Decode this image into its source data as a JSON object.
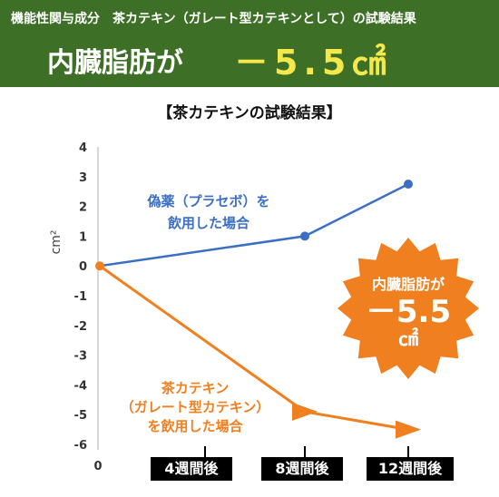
{
  "header": {
    "subtitle": "機能性関与成分　茶カテキン（ガレート型カテキンとして）の試験結果",
    "headline": "内臓脂肪が",
    "headline_value": "－5.5㎠"
  },
  "callout": {
    "line1": "内臓脂肪が",
    "line2": "－5.5",
    "line3": "㎠"
  },
  "annotations": {
    "placebo": [
      "偽薬（プラセボ）を",
      "飲用した場合"
    ],
    "tea_catechin": [
      "茶カテキン",
      "（ガレート型カテキン）",
      "を飲用した場合"
    ]
  },
  "colors": {
    "header_bg": "#3e6f27",
    "headline_value": "#f5e84a",
    "placebo": "#3b6fc4",
    "tea_catechin": "#f07f1f",
    "callout_bg": "#f07f1f"
  },
  "chart_data": {
    "type": "line",
    "title": "【茶カテキンの試験結果】",
    "ylabel": "cm²",
    "xlabel": "",
    "ylim": [
      -6,
      4
    ],
    "yticks": [
      4,
      3,
      2,
      1,
      0,
      -1,
      -2,
      -3,
      -4,
      -5,
      -6
    ],
    "x_origin_label": "0",
    "categories": [
      "0",
      "4週間後",
      "8週間後",
      "12週間後"
    ],
    "x_labels": [
      "4週間後",
      "8週間後",
      "12週間後"
    ],
    "grid": false,
    "series": [
      {
        "name": "偽薬（プラセボ）を飲用した場合",
        "x": [
          0,
          8,
          12
        ],
        "y": [
          0,
          1,
          2.75
        ],
        "color": "#3b6fc4",
        "marker": "circle"
      },
      {
        "name": "茶カテキン（ガレート型カテキン）を飲用した場合",
        "x": [
          0,
          8,
          12
        ],
        "y": [
          0,
          -4.9,
          -5.5
        ],
        "color": "#f07f1f",
        "marker": "triangle"
      }
    ]
  }
}
